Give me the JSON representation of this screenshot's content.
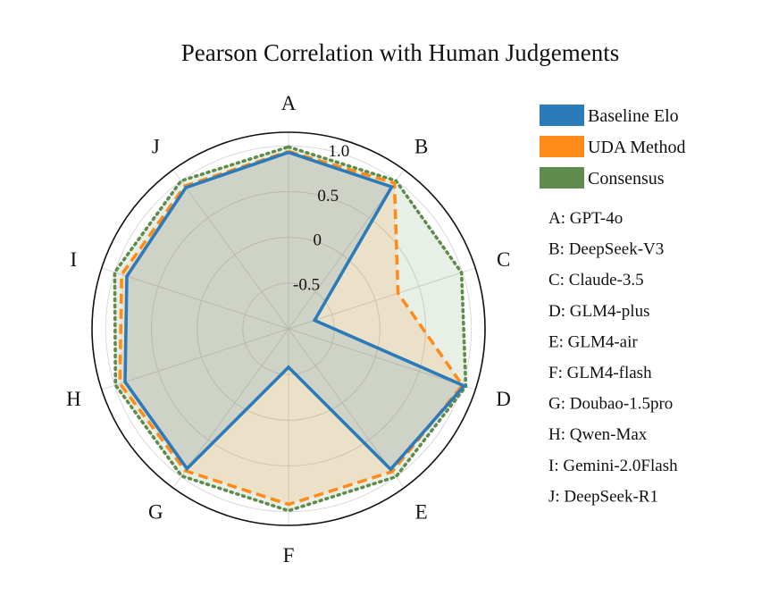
{
  "chart_data": {
    "type": "radar",
    "title": "Pearson Correlation with Human Judgements",
    "categories": [
      "A",
      "B",
      "C",
      "D",
      "E",
      "F",
      "G",
      "H",
      "I",
      "J"
    ],
    "radial_ticks": [
      "-0.5",
      "0",
      "0.5",
      "1.0"
    ],
    "radial_tick_values": [
      -0.5,
      0,
      0.5,
      1.0
    ],
    "rlim": [
      -1.0,
      1.15
    ],
    "grid": true,
    "legend_position": "top-right",
    "series": [
      {
        "name": "Baseline Elo",
        "color": "#2b7bba",
        "line_style": "solid",
        "values": [
          0.93,
          0.92,
          -0.7,
          1.02,
          0.9,
          -0.58,
          0.89,
          0.88,
          0.86,
          0.91
        ]
      },
      {
        "name": "UDA Method",
        "color": "#ff8c1a",
        "line_style": "dashed",
        "values": [
          0.94,
          0.97,
          0.26,
          1.0,
          0.93,
          0.92,
          0.92,
          0.94,
          0.92,
          0.93
        ]
      },
      {
        "name": "Consensus",
        "color": "#5f8b4c",
        "line_style": "dotted",
        "values": [
          0.99,
          1.0,
          0.99,
          1.04,
          1.0,
          0.99,
          0.99,
          0.99,
          1.0,
          1.0
        ]
      }
    ],
    "model_key": [
      "A: GPT-4o",
      "B: DeepSeek-V3",
      "C: Claude-3.5",
      "D: GLM4-plus",
      "E: GLM4-air",
      "F: GLM4-flash",
      "G: Doubao-1.5pro",
      "H: Qwen-Max",
      "I: Gemini-2.0Flash",
      "J: DeepSeek-R1"
    ]
  }
}
